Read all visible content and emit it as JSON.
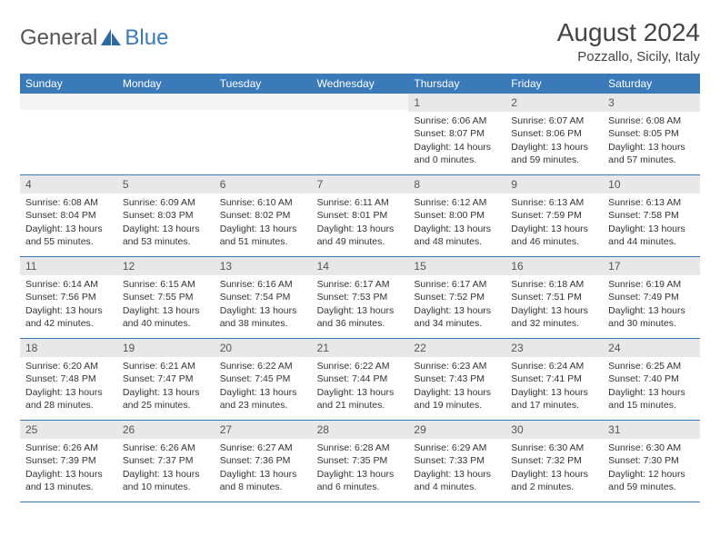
{
  "logo": {
    "text1": "General",
    "text2": "Blue"
  },
  "title": "August 2024",
  "location": "Pozzallo, Sicily, Italy",
  "weekdays": [
    "Sunday",
    "Monday",
    "Tuesday",
    "Wednesday",
    "Thursday",
    "Friday",
    "Saturday"
  ],
  "colors": {
    "header_bg": "#3a7ab8",
    "daynum_bg": "#e8e8e8",
    "border": "#3a7ab8"
  },
  "leading_blanks": 4,
  "days": [
    {
      "n": "1",
      "sr": "Sunrise: 6:06 AM",
      "ss": "Sunset: 8:07 PM",
      "d1": "Daylight: 14 hours",
      "d2": "and 0 minutes."
    },
    {
      "n": "2",
      "sr": "Sunrise: 6:07 AM",
      "ss": "Sunset: 8:06 PM",
      "d1": "Daylight: 13 hours",
      "d2": "and 59 minutes."
    },
    {
      "n": "3",
      "sr": "Sunrise: 6:08 AM",
      "ss": "Sunset: 8:05 PM",
      "d1": "Daylight: 13 hours",
      "d2": "and 57 minutes."
    },
    {
      "n": "4",
      "sr": "Sunrise: 6:08 AM",
      "ss": "Sunset: 8:04 PM",
      "d1": "Daylight: 13 hours",
      "d2": "and 55 minutes."
    },
    {
      "n": "5",
      "sr": "Sunrise: 6:09 AM",
      "ss": "Sunset: 8:03 PM",
      "d1": "Daylight: 13 hours",
      "d2": "and 53 minutes."
    },
    {
      "n": "6",
      "sr": "Sunrise: 6:10 AM",
      "ss": "Sunset: 8:02 PM",
      "d1": "Daylight: 13 hours",
      "d2": "and 51 minutes."
    },
    {
      "n": "7",
      "sr": "Sunrise: 6:11 AM",
      "ss": "Sunset: 8:01 PM",
      "d1": "Daylight: 13 hours",
      "d2": "and 49 minutes."
    },
    {
      "n": "8",
      "sr": "Sunrise: 6:12 AM",
      "ss": "Sunset: 8:00 PM",
      "d1": "Daylight: 13 hours",
      "d2": "and 48 minutes."
    },
    {
      "n": "9",
      "sr": "Sunrise: 6:13 AM",
      "ss": "Sunset: 7:59 PM",
      "d1": "Daylight: 13 hours",
      "d2": "and 46 minutes."
    },
    {
      "n": "10",
      "sr": "Sunrise: 6:13 AM",
      "ss": "Sunset: 7:58 PM",
      "d1": "Daylight: 13 hours",
      "d2": "and 44 minutes."
    },
    {
      "n": "11",
      "sr": "Sunrise: 6:14 AM",
      "ss": "Sunset: 7:56 PM",
      "d1": "Daylight: 13 hours",
      "d2": "and 42 minutes."
    },
    {
      "n": "12",
      "sr": "Sunrise: 6:15 AM",
      "ss": "Sunset: 7:55 PM",
      "d1": "Daylight: 13 hours",
      "d2": "and 40 minutes."
    },
    {
      "n": "13",
      "sr": "Sunrise: 6:16 AM",
      "ss": "Sunset: 7:54 PM",
      "d1": "Daylight: 13 hours",
      "d2": "and 38 minutes."
    },
    {
      "n": "14",
      "sr": "Sunrise: 6:17 AM",
      "ss": "Sunset: 7:53 PM",
      "d1": "Daylight: 13 hours",
      "d2": "and 36 minutes."
    },
    {
      "n": "15",
      "sr": "Sunrise: 6:17 AM",
      "ss": "Sunset: 7:52 PM",
      "d1": "Daylight: 13 hours",
      "d2": "and 34 minutes."
    },
    {
      "n": "16",
      "sr": "Sunrise: 6:18 AM",
      "ss": "Sunset: 7:51 PM",
      "d1": "Daylight: 13 hours",
      "d2": "and 32 minutes."
    },
    {
      "n": "17",
      "sr": "Sunrise: 6:19 AM",
      "ss": "Sunset: 7:49 PM",
      "d1": "Daylight: 13 hours",
      "d2": "and 30 minutes."
    },
    {
      "n": "18",
      "sr": "Sunrise: 6:20 AM",
      "ss": "Sunset: 7:48 PM",
      "d1": "Daylight: 13 hours",
      "d2": "and 28 minutes."
    },
    {
      "n": "19",
      "sr": "Sunrise: 6:21 AM",
      "ss": "Sunset: 7:47 PM",
      "d1": "Daylight: 13 hours",
      "d2": "and 25 minutes."
    },
    {
      "n": "20",
      "sr": "Sunrise: 6:22 AM",
      "ss": "Sunset: 7:45 PM",
      "d1": "Daylight: 13 hours",
      "d2": "and 23 minutes."
    },
    {
      "n": "21",
      "sr": "Sunrise: 6:22 AM",
      "ss": "Sunset: 7:44 PM",
      "d1": "Daylight: 13 hours",
      "d2": "and 21 minutes."
    },
    {
      "n": "22",
      "sr": "Sunrise: 6:23 AM",
      "ss": "Sunset: 7:43 PM",
      "d1": "Daylight: 13 hours",
      "d2": "and 19 minutes."
    },
    {
      "n": "23",
      "sr": "Sunrise: 6:24 AM",
      "ss": "Sunset: 7:41 PM",
      "d1": "Daylight: 13 hours",
      "d2": "and 17 minutes."
    },
    {
      "n": "24",
      "sr": "Sunrise: 6:25 AM",
      "ss": "Sunset: 7:40 PM",
      "d1": "Daylight: 13 hours",
      "d2": "and 15 minutes."
    },
    {
      "n": "25",
      "sr": "Sunrise: 6:26 AM",
      "ss": "Sunset: 7:39 PM",
      "d1": "Daylight: 13 hours",
      "d2": "and 13 minutes."
    },
    {
      "n": "26",
      "sr": "Sunrise: 6:26 AM",
      "ss": "Sunset: 7:37 PM",
      "d1": "Daylight: 13 hours",
      "d2": "and 10 minutes."
    },
    {
      "n": "27",
      "sr": "Sunrise: 6:27 AM",
      "ss": "Sunset: 7:36 PM",
      "d1": "Daylight: 13 hours",
      "d2": "and 8 minutes."
    },
    {
      "n": "28",
      "sr": "Sunrise: 6:28 AM",
      "ss": "Sunset: 7:35 PM",
      "d1": "Daylight: 13 hours",
      "d2": "and 6 minutes."
    },
    {
      "n": "29",
      "sr": "Sunrise: 6:29 AM",
      "ss": "Sunset: 7:33 PM",
      "d1": "Daylight: 13 hours",
      "d2": "and 4 minutes."
    },
    {
      "n": "30",
      "sr": "Sunrise: 6:30 AM",
      "ss": "Sunset: 7:32 PM",
      "d1": "Daylight: 13 hours",
      "d2": "and 2 minutes."
    },
    {
      "n": "31",
      "sr": "Sunrise: 6:30 AM",
      "ss": "Sunset: 7:30 PM",
      "d1": "Daylight: 12 hours",
      "d2": "and 59 minutes."
    }
  ]
}
